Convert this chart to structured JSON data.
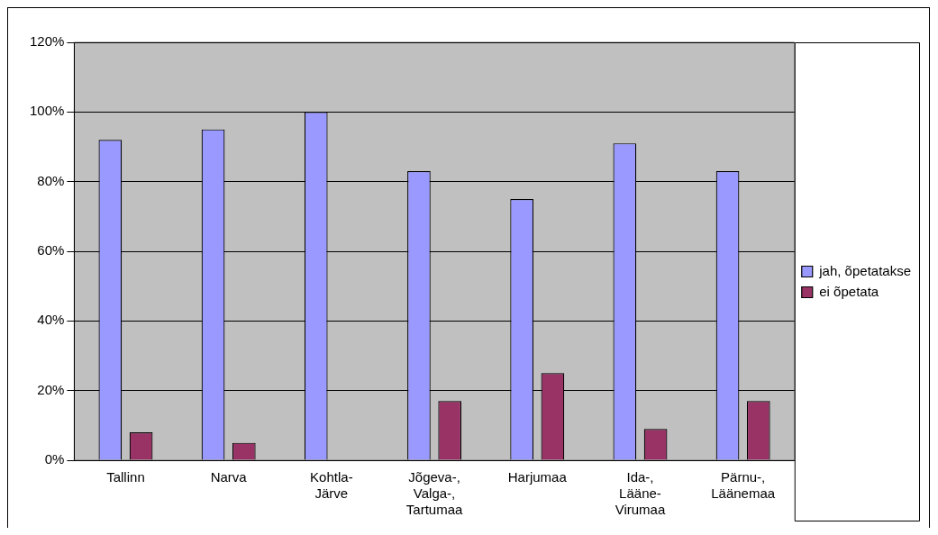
{
  "chart_data": {
    "type": "bar",
    "categories": [
      "Tallinn",
      "Narva",
      "Kohtla-Järve",
      "Jõgeva-, Valga-, Tartumaa",
      "Harjumaa",
      "Ida-, Lääne-Virumaa",
      "Pärnu-, Läänemaa"
    ],
    "series": [
      {
        "name": "jah, õpetatakse",
        "color": "#9999ff",
        "values": [
          92,
          95,
          100,
          83,
          75,
          91,
          83
        ]
      },
      {
        "name": "ei õpetata",
        "color": "#993366",
        "values": [
          8,
          5,
          0,
          17,
          25,
          9,
          17
        ]
      }
    ],
    "ylim": [
      0,
      120
    ],
    "yticks": [
      {
        "value": 0,
        "label": "0%"
      },
      {
        "value": 20,
        "label": "20%"
      },
      {
        "value": 40,
        "label": "40%"
      },
      {
        "value": 60,
        "label": "60%"
      },
      {
        "value": 80,
        "label": "80%"
      },
      {
        "value": 100,
        "label": "100%"
      },
      {
        "value": 120,
        "label": "120%"
      }
    ],
    "grid": "y",
    "legend": "right"
  }
}
